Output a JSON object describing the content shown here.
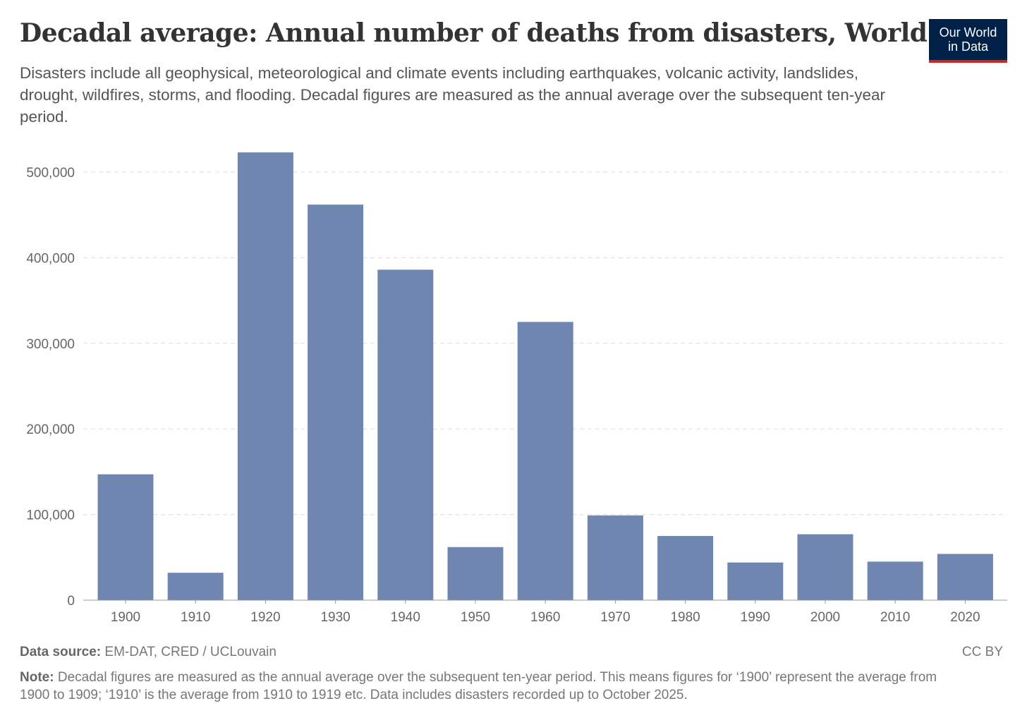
{
  "title": "Decadal average: Annual number of deaths from disasters, World",
  "subtitle": "Disasters include all geophysical, meteorological and climate events including earthquakes, volcanic activity, landslides, drought, wildfires, storms, and flooding. Decadal figures are measured as the annual average over the subsequent ten-year period.",
  "logo": "Our World in Data",
  "logo_line1": "Our World",
  "logo_line2": "in Data",
  "source_label": "Data source:",
  "source": "EM-DAT, CRED / UCLouvain",
  "license": "CC BY",
  "note_label": "Note:",
  "note": "Decadal figures are measured as the annual average over the subsequent ten-year period. This means figures for ‘1900’ represent the average from 1900 to 1909; ‘1910’ is the average from 1910 to 1919 etc. Data includes disasters recorded up to October 2025.",
  "colors": {
    "bar": "#6f87b0",
    "logo_bg": "#002147",
    "logo_accent": "#ce261e"
  },
  "chart_data": {
    "type": "bar",
    "categories": [
      "1900",
      "1910",
      "1920",
      "1930",
      "1940",
      "1950",
      "1960",
      "1970",
      "1980",
      "1990",
      "2000",
      "2010",
      "2020"
    ],
    "values": [
      147000,
      32000,
      523000,
      462000,
      386000,
      62000,
      325000,
      99000,
      75000,
      44000,
      77000,
      45000,
      54000
    ],
    "yticks": [
      0,
      100000,
      200000,
      300000,
      400000,
      500000
    ],
    "ytick_labels": [
      "0",
      "100,000",
      "200,000",
      "300,000",
      "400,000",
      "500,000"
    ],
    "ylim": [
      0,
      500000
    ],
    "grid": "horizontal dashed",
    "title": "Decadal average: Annual number of deaths from disasters, World",
    "xlabel": "",
    "ylabel": ""
  }
}
